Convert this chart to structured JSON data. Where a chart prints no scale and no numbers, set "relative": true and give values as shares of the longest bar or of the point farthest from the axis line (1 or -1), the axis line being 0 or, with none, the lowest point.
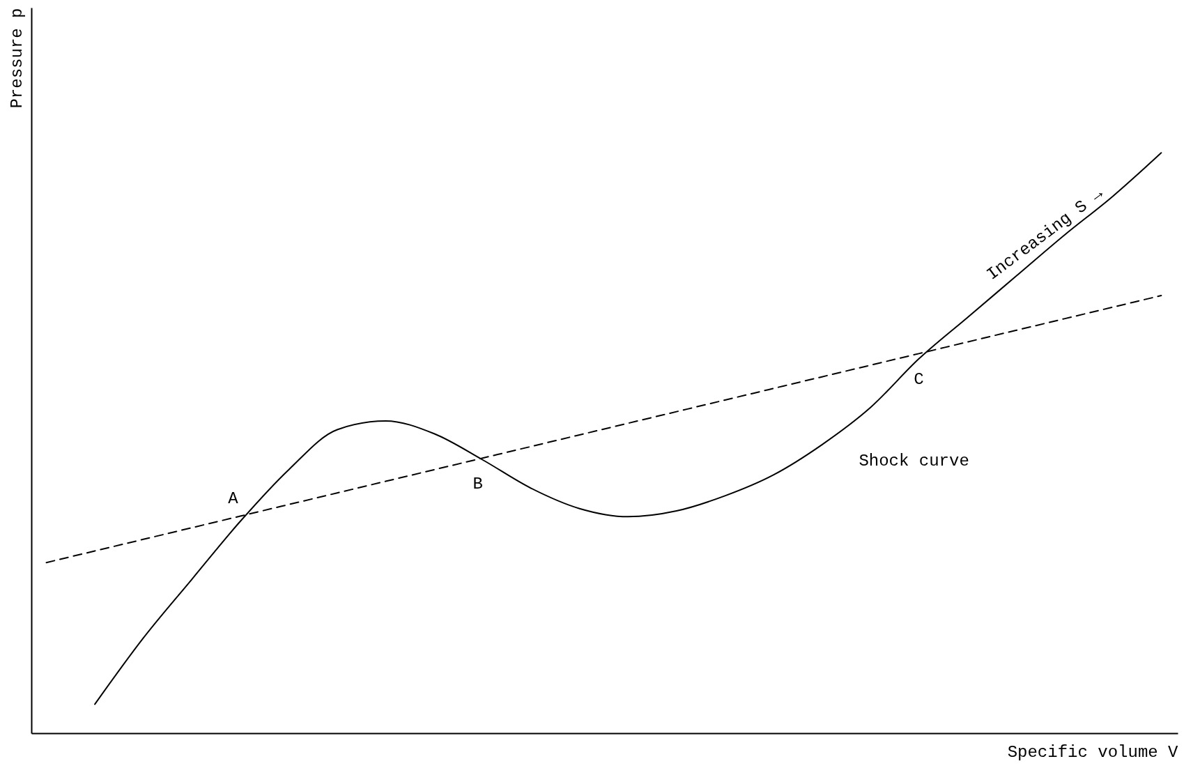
{
  "chart_data": {
    "type": "line",
    "relative": true,
    "xlabel": "Specific volume V",
    "ylabel": "Pressure p",
    "tick_labels": false,
    "grid": false,
    "categories": [
      null,
      null,
      null,
      null,
      null,
      null,
      null,
      null,
      null,
      null,
      null,
      null,
      null,
      null,
      null,
      null,
      null,
      null,
      null,
      null,
      null,
      null,
      null,
      null
    ],
    "series": [
      {
        "color": "#000000",
        "line_style": "solid",
        "values": [
          null,
          0.05,
          0.164,
          0.265,
          0.365,
          0.454,
          0.523,
          0.538,
          0.516,
          0.471,
          0.422,
          0.387,
          0.373,
          0.383,
          0.409,
          0.445,
          0.497,
          0.561,
          0.645,
          0.716,
          0.787,
          0.858,
          0.925,
          1
        ]
      },
      {
        "color": "#000000",
        "line_style": "dashed",
        "values": [
          0.294,
          0.314,
          0.334,
          0.354,
          0.374,
          0.394,
          0.414,
          0.434,
          0.454,
          0.474,
          0.494,
          0.514,
          0.534,
          0.554,
          0.574,
          0.594,
          0.614,
          0.634,
          0.654,
          0.674,
          0.694,
          0.714,
          0.734,
          0.754
        ]
      }
    ],
    "annotations": [
      "A",
      "B",
      "C",
      "Shock curve",
      "Increasing S →"
    ]
  }
}
